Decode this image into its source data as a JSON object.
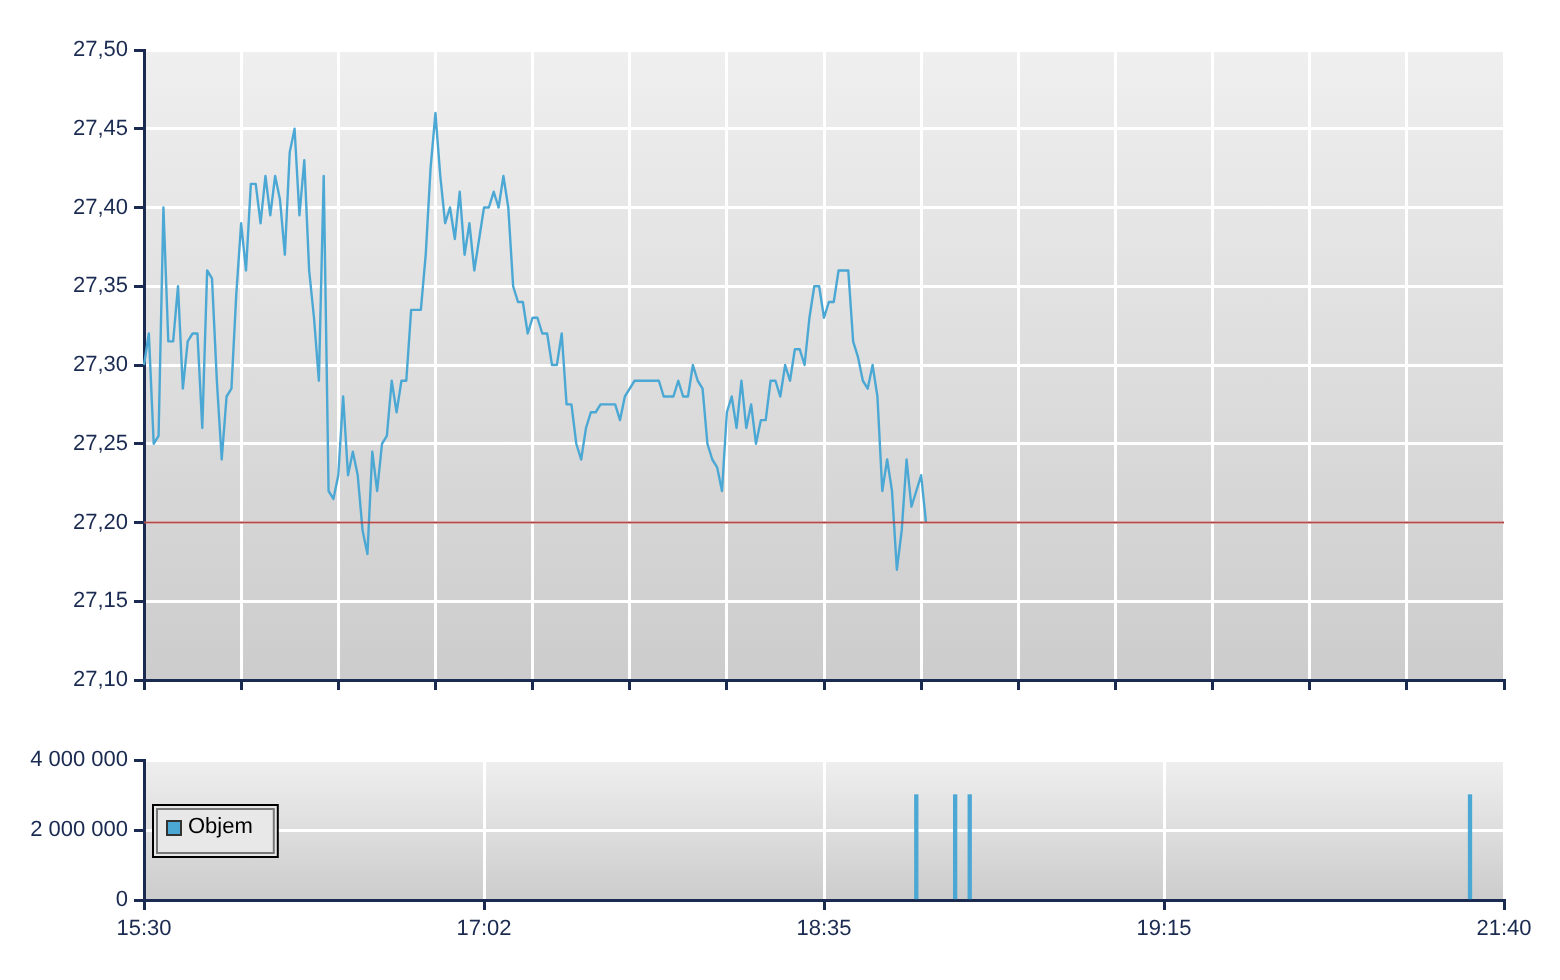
{
  "chart_data": [
    {
      "type": "line",
      "categories": [
        null,
        null,
        null,
        null,
        null,
        null,
        null,
        null,
        null,
        null,
        null,
        null,
        null,
        null,
        null,
        null,
        null,
        null,
        null,
        null,
        null,
        null,
        null,
        null,
        null,
        null,
        null,
        null,
        null,
        null,
        null,
        null,
        null,
        null,
        null,
        null,
        null,
        null,
        null,
        null,
        null,
        null,
        null,
        null,
        null,
        null,
        null,
        null,
        null,
        null,
        null,
        null,
        null,
        null,
        null,
        null,
        null,
        null,
        null,
        null,
        null,
        null,
        null,
        null,
        null,
        null,
        null,
        null,
        null,
        null,
        null,
        null,
        null,
        null,
        null,
        null,
        null,
        null,
        null,
        null,
        null,
        null,
        null,
        null,
        null,
        null,
        null,
        null,
        null,
        null,
        null,
        null,
        null,
        null,
        null,
        null,
        null,
        null,
        null,
        null,
        null,
        null,
        null,
        null,
        null,
        null,
        null,
        null,
        null,
        null,
        null,
        null,
        null,
        null,
        null,
        null,
        null,
        null,
        null,
        null,
        null,
        null,
        null,
        null,
        null,
        null,
        null,
        null,
        null,
        null,
        null,
        null,
        null,
        null,
        null,
        null,
        null,
        null,
        null,
        null,
        null,
        null,
        null,
        null,
        null,
        null,
        null,
        null,
        null,
        null,
        null,
        null,
        null,
        null,
        null,
        null,
        null,
        null,
        null,
        null,
        null,
        null,
        null,
        null,
        null,
        null,
        null,
        null,
        null,
        null,
        null,
        null,
        null,
        null,
        null,
        null,
        null,
        null,
        null,
        null,
        null,
        null,
        null,
        null,
        null,
        null,
        null,
        null,
        null,
        null,
        null,
        null,
        null,
        null,
        null,
        null,
        null,
        null,
        null,
        null,
        null,
        null,
        null,
        null,
        null,
        null,
        null,
        null,
        null,
        null,
        null,
        null,
        null,
        null,
        null,
        null,
        null,
        null,
        null,
        null,
        null,
        null,
        null,
        null,
        null,
        null,
        null,
        null,
        null,
        null,
        null,
        null,
        null,
        null,
        null,
        null,
        null,
        null,
        null,
        null,
        null,
        null,
        null,
        null,
        null,
        null,
        null,
        null,
        null,
        null,
        null,
        null,
        null,
        null,
        null,
        null,
        null,
        null,
        null,
        null,
        null,
        null,
        null,
        null,
        null,
        null,
        null,
        null,
        null,
        null,
        null,
        null,
        null,
        null,
        null,
        null,
        null,
        null,
        null,
        null,
        null
      ],
      "ylim": [
        27.1,
        27.5
      ],
      "yticks": [
        {
          "value": 27.1,
          "label": "27,10"
        },
        {
          "value": 27.15,
          "label": "27,15"
        },
        {
          "value": 27.2,
          "label": "27,20"
        },
        {
          "value": 27.25,
          "label": "27,25"
        },
        {
          "value": 27.3,
          "label": "27,30"
        },
        {
          "value": 27.35,
          "label": "27,35"
        },
        {
          "value": 27.4,
          "label": "27,40"
        },
        {
          "value": 27.45,
          "label": "27,45"
        },
        {
          "value": 27.5,
          "label": "27,50"
        }
      ],
      "grid": true,
      "tick_labels": "y",
      "legend": false,
      "marker": "none",
      "line_style": "solid",
      "ref_lines": [
        {
          "axis": "y",
          "value": 27.2,
          "color": "#b04a4a"
        }
      ],
      "series": [
        {
          "color": "#4ba8d4",
          "values": [
            27.3,
            27.32,
            27.25,
            27.255,
            27.4,
            27.315,
            27.315,
            27.35,
            27.285,
            27.315,
            27.32,
            27.32,
            27.26,
            27.36,
            27.355,
            27.29,
            27.24,
            27.28,
            27.285,
            27.345,
            27.39,
            27.36,
            27.415,
            27.415,
            27.39,
            27.42,
            27.395,
            27.42,
            27.405,
            27.37,
            27.435,
            27.45,
            27.395,
            27.43,
            27.36,
            27.33,
            27.29,
            27.42,
            27.22,
            27.215,
            27.23,
            27.28,
            27.23,
            27.245,
            27.23,
            27.195,
            27.18,
            27.245,
            27.22,
            27.25,
            27.255,
            27.29,
            27.27,
            27.29,
            27.29,
            27.335,
            27.335,
            27.335,
            27.37,
            27.425,
            27.46,
            27.42,
            27.39,
            27.4,
            27.38,
            27.41,
            27.37,
            27.39,
            27.36,
            27.38,
            27.4,
            27.4,
            27.41,
            27.4,
            27.42,
            27.4,
            27.35,
            27.34,
            27.34,
            27.32,
            27.33,
            27.33,
            27.32,
            27.32,
            27.3,
            27.3,
            27.32,
            27.275,
            27.275,
            27.25,
            27.24,
            27.26,
            27.27,
            27.27,
            27.275,
            27.275,
            27.275,
            27.275,
            27.265,
            27.28,
            27.285,
            27.29,
            27.29,
            27.29,
            27.29,
            27.29,
            27.29,
            27.28,
            27.28,
            27.28,
            27.29,
            27.28,
            27.28,
            27.3,
            27.29,
            27.285,
            27.25,
            27.24,
            27.235,
            27.22,
            27.27,
            27.28,
            27.26,
            27.29,
            27.26,
            27.275,
            27.25,
            27.265,
            27.265,
            27.29,
            27.29,
            27.28,
            27.3,
            27.29,
            27.31,
            27.31,
            27.3,
            27.33,
            27.35,
            27.35,
            27.33,
            27.34,
            27.34,
            27.36,
            27.36,
            27.36,
            27.315,
            27.305,
            27.29,
            27.285,
            27.3,
            27.28,
            27.22,
            27.24,
            27.22,
            27.17,
            27.195,
            27.24,
            27.21,
            27.22,
            27.23,
            27.2,
            null,
            null,
            null,
            null,
            null,
            null,
            null,
            null,
            null,
            null,
            null,
            null,
            null,
            null,
            null,
            null,
            null,
            null,
            null,
            null,
            null,
            null,
            null,
            null,
            null,
            null,
            null,
            null,
            null,
            null,
            null,
            null,
            null,
            null,
            null,
            null,
            null,
            null,
            null,
            null,
            null,
            null,
            null,
            null,
            null,
            null,
            null,
            null,
            null,
            null,
            null,
            null,
            null,
            null,
            null,
            null,
            null,
            null,
            null,
            null,
            null,
            null,
            null,
            null,
            null,
            null,
            null,
            null,
            null,
            null,
            null,
            null,
            null,
            null,
            null,
            null,
            null,
            null,
            null,
            null,
            null,
            null,
            null,
            null,
            null,
            null,
            null,
            null,
            null,
            null,
            null,
            null,
            null,
            null,
            null,
            null,
            null,
            null,
            null,
            null,
            null,
            null,
            null,
            null,
            null,
            null,
            null,
            null,
            null,
            null,
            null,
            null,
            null,
            null,
            null,
            null,
            null,
            null,
            null
          ]
        }
      ]
    },
    {
      "type": "bar",
      "categories": [
        "15:30",
        null,
        null,
        null,
        null,
        null,
        null,
        null,
        null,
        null,
        null,
        null,
        null,
        null,
        null,
        null,
        null,
        null,
        null,
        null,
        null,
        null,
        null,
        null,
        null,
        null,
        null,
        null,
        null,
        null,
        null,
        null,
        null,
        null,
        null,
        null,
        null,
        null,
        null,
        null,
        null,
        null,
        null,
        null,
        null,
        null,
        null,
        null,
        null,
        null,
        null,
        null,
        null,
        null,
        null,
        null,
        null,
        null,
        null,
        null,
        null,
        null,
        null,
        null,
        null,
        null,
        null,
        null,
        null,
        null,
        "17:02",
        null,
        null,
        null,
        null,
        null,
        null,
        null,
        null,
        null,
        null,
        null,
        null,
        null,
        null,
        null,
        null,
        null,
        null,
        null,
        null,
        null,
        null,
        null,
        null,
        null,
        null,
        null,
        null,
        null,
        null,
        null,
        null,
        null,
        null,
        null,
        null,
        null,
        null,
        null,
        null,
        null,
        null,
        null,
        null,
        null,
        null,
        null,
        null,
        null,
        null,
        null,
        null,
        null,
        null,
        null,
        null,
        null,
        null,
        null,
        null,
        null,
        null,
        null,
        null,
        null,
        null,
        null,
        null,
        null,
        "18:35",
        null,
        null,
        null,
        null,
        null,
        null,
        null,
        null,
        null,
        null,
        null,
        null,
        null,
        null,
        null,
        null,
        null,
        null,
        null,
        null,
        null,
        null,
        null,
        null,
        null,
        null,
        null,
        null,
        null,
        null,
        null,
        null,
        null,
        null,
        null,
        null,
        null,
        null,
        null,
        null,
        null,
        null,
        null,
        null,
        null,
        null,
        null,
        null,
        null,
        null,
        null,
        null,
        null,
        null,
        null,
        null,
        null,
        null,
        null,
        null,
        null,
        null,
        null,
        null,
        null,
        null,
        null,
        null,
        null,
        "19:15",
        null,
        null,
        null,
        null,
        null,
        null,
        null,
        null,
        null,
        null,
        null,
        null,
        null,
        null,
        null,
        null,
        null,
        null,
        null,
        null,
        null,
        null,
        null,
        null,
        null,
        null,
        null,
        null,
        null,
        null,
        null,
        null,
        null,
        null,
        null,
        null,
        null,
        null,
        null,
        null,
        null,
        null,
        null,
        null,
        null,
        null,
        null,
        null,
        null,
        null,
        null,
        null,
        null,
        null,
        null,
        null,
        null,
        null,
        null,
        null,
        null,
        null,
        null,
        null,
        null,
        null,
        null,
        null,
        null,
        "21:40"
      ],
      "ylim": [
        0,
        4000000
      ],
      "yticks": [
        {
          "value": 0,
          "label": "0"
        },
        {
          "value": 2000000,
          "label": "2 000 000"
        },
        {
          "value": 4000000,
          "label": "4 000 000"
        }
      ],
      "grid": true,
      "legend": "left",
      "series": [
        {
          "name": "Objem",
          "color": "#4ba8d4",
          "values": [
            null,
            null,
            null,
            null,
            null,
            null,
            null,
            null,
            null,
            null,
            null,
            null,
            null,
            null,
            null,
            null,
            null,
            null,
            null,
            null,
            null,
            null,
            null,
            null,
            null,
            null,
            null,
            null,
            null,
            null,
            null,
            null,
            null,
            null,
            null,
            null,
            null,
            null,
            null,
            null,
            null,
            null,
            null,
            null,
            null,
            null,
            null,
            null,
            null,
            null,
            null,
            null,
            null,
            null,
            null,
            null,
            null,
            null,
            null,
            null,
            null,
            null,
            null,
            null,
            null,
            null,
            null,
            null,
            null,
            null,
            null,
            null,
            null,
            null,
            null,
            null,
            null,
            null,
            null,
            null,
            null,
            null,
            null,
            null,
            null,
            null,
            null,
            null,
            null,
            null,
            null,
            null,
            null,
            null,
            null,
            null,
            null,
            null,
            null,
            null,
            null,
            null,
            null,
            null,
            null,
            null,
            null,
            null,
            null,
            null,
            null,
            null,
            null,
            null,
            null,
            null,
            null,
            null,
            null,
            null,
            null,
            null,
            null,
            null,
            null,
            null,
            null,
            null,
            null,
            null,
            null,
            null,
            null,
            null,
            null,
            null,
            null,
            null,
            null,
            null,
            null,
            null,
            null,
            null,
            null,
            null,
            null,
            null,
            null,
            null,
            null,
            null,
            null,
            null,
            null,
            null,
            null,
            null,
            null,
            3000000,
            null,
            null,
            null,
            null,
            null,
            null,
            null,
            3000000,
            null,
            null,
            3000000,
            null,
            null,
            null,
            null,
            null,
            null,
            null,
            null,
            null,
            null,
            null,
            null,
            null,
            null,
            null,
            null,
            null,
            null,
            null,
            null,
            null,
            null,
            null,
            null,
            null,
            null,
            null,
            null,
            null,
            null,
            null,
            null,
            null,
            null,
            null,
            null,
            null,
            null,
            null,
            null,
            null,
            null,
            null,
            null,
            null,
            null,
            null,
            null,
            null,
            null,
            null,
            null,
            null,
            null,
            null,
            null,
            null,
            null,
            null,
            null,
            null,
            null,
            null,
            null,
            null,
            null,
            null,
            null,
            null,
            null,
            null,
            null,
            null,
            null,
            null,
            null,
            null,
            null,
            null,
            null,
            null,
            null,
            null,
            null,
            null,
            null,
            null,
            null,
            null,
            null,
            null,
            null,
            null,
            null,
            null,
            null,
            null,
            null,
            null,
            null,
            null,
            null,
            3000000,
            null,
            null,
            null,
            null,
            null,
            null,
            null
          ]
        }
      ]
    }
  ]
}
